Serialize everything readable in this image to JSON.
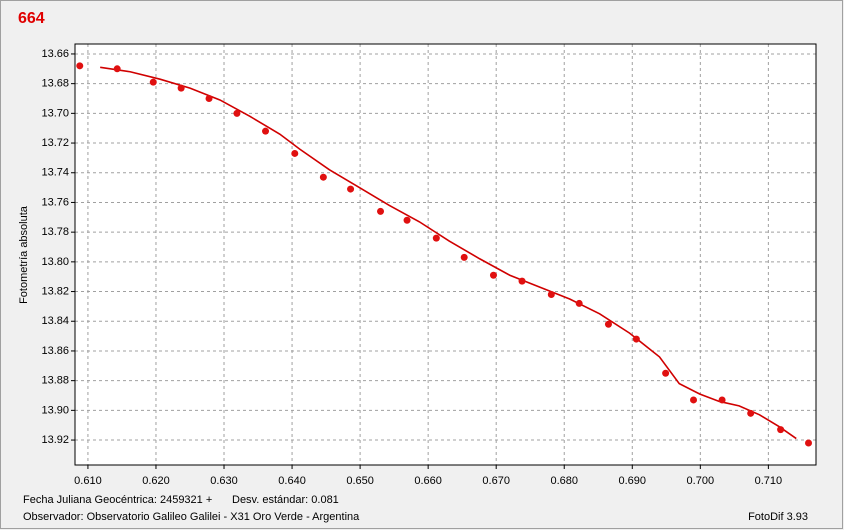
{
  "chart_data": {
    "type": "scatter",
    "title": "664",
    "y_label": "Fotometría absoluta",
    "footer": [
      "Fecha Juliana Geocéntrica: 2459321 +",
      "Desv. estándar: 0.081",
      "Observador: Observatorio Galileo Galilei - X31 Oro Verde - Argentina",
      "FotoDif 3.93"
    ],
    "xlim": [
      0.6081,
      0.717
    ],
    "ylim": [
      13.6533,
      13.9368
    ],
    "y_inverted": true,
    "grid": true,
    "xticks": [
      {
        "value": 0.61,
        "label": "0.610"
      },
      {
        "value": 0.62,
        "label": "0.620"
      },
      {
        "value": 0.63,
        "label": "0.630"
      },
      {
        "value": 0.64,
        "label": "0.640"
      },
      {
        "value": 0.65,
        "label": "0.650"
      },
      {
        "value": 0.66,
        "label": "0.660"
      },
      {
        "value": 0.67,
        "label": "0.670"
      },
      {
        "value": 0.68,
        "label": "0.680"
      },
      {
        "value": 0.69,
        "label": "0.690"
      },
      {
        "value": 0.7,
        "label": "0.700"
      },
      {
        "value": 0.71,
        "label": "0.710"
      }
    ],
    "yticks": [
      {
        "value": 13.66,
        "label": "13.66"
      },
      {
        "value": 13.68,
        "label": "13.68"
      },
      {
        "value": 13.7,
        "label": "13.70"
      },
      {
        "value": 13.72,
        "label": "13.72"
      },
      {
        "value": 13.74,
        "label": "13.74"
      },
      {
        "value": 13.76,
        "label": "13.76"
      },
      {
        "value": 13.78,
        "label": "13.78"
      },
      {
        "value": 13.8,
        "label": "13.80"
      },
      {
        "value": 13.82,
        "label": "13.82"
      },
      {
        "value": 13.84,
        "label": "13.84"
      },
      {
        "value": 13.86,
        "label": "13.86"
      },
      {
        "value": 13.88,
        "label": "13.88"
      },
      {
        "value": 13.9,
        "label": "13.90"
      },
      {
        "value": 13.92,
        "label": "13.92"
      }
    ],
    "points": {
      "color": "#e01010",
      "x": [
        0.6088,
        0.6143,
        0.6196,
        0.6237,
        0.6278,
        0.6319,
        0.6361,
        0.6404,
        0.6446,
        0.6486,
        0.653,
        0.6569,
        0.6612,
        0.6653,
        0.6696,
        0.6738,
        0.6781,
        0.6822,
        0.6865,
        0.6906,
        0.6949,
        0.699,
        0.7032,
        0.7074,
        0.7118,
        0.7159
      ],
      "y": [
        13.668,
        13.67,
        13.679,
        13.683,
        13.69,
        13.7,
        13.712,
        13.727,
        13.743,
        13.751,
        13.766,
        13.772,
        13.784,
        13.797,
        13.809,
        13.813,
        13.822,
        13.828,
        13.842,
        13.852,
        13.875,
        13.893,
        13.893,
        13.902,
        13.913,
        13.922
      ]
    },
    "fit": {
      "color": "#d00000",
      "x": [
        0.6118,
        0.6162,
        0.6206,
        0.625,
        0.6294,
        0.6338,
        0.6382,
        0.6411,
        0.6455,
        0.6499,
        0.6543,
        0.6587,
        0.6631,
        0.6676,
        0.672,
        0.6764,
        0.6808,
        0.6852,
        0.6896,
        0.694,
        0.6969,
        0.6999,
        0.7028,
        0.7057,
        0.7087,
        0.7116,
        0.7141
      ],
      "y": [
        13.669,
        13.672,
        13.677,
        13.683,
        13.691,
        13.702,
        13.714,
        13.724,
        13.738,
        13.75,
        13.762,
        13.773,
        13.786,
        13.798,
        13.809,
        13.817,
        13.825,
        13.835,
        13.848,
        13.864,
        13.882,
        13.889,
        13.894,
        13.897,
        13.903,
        13.911,
        13.919
      ]
    }
  }
}
